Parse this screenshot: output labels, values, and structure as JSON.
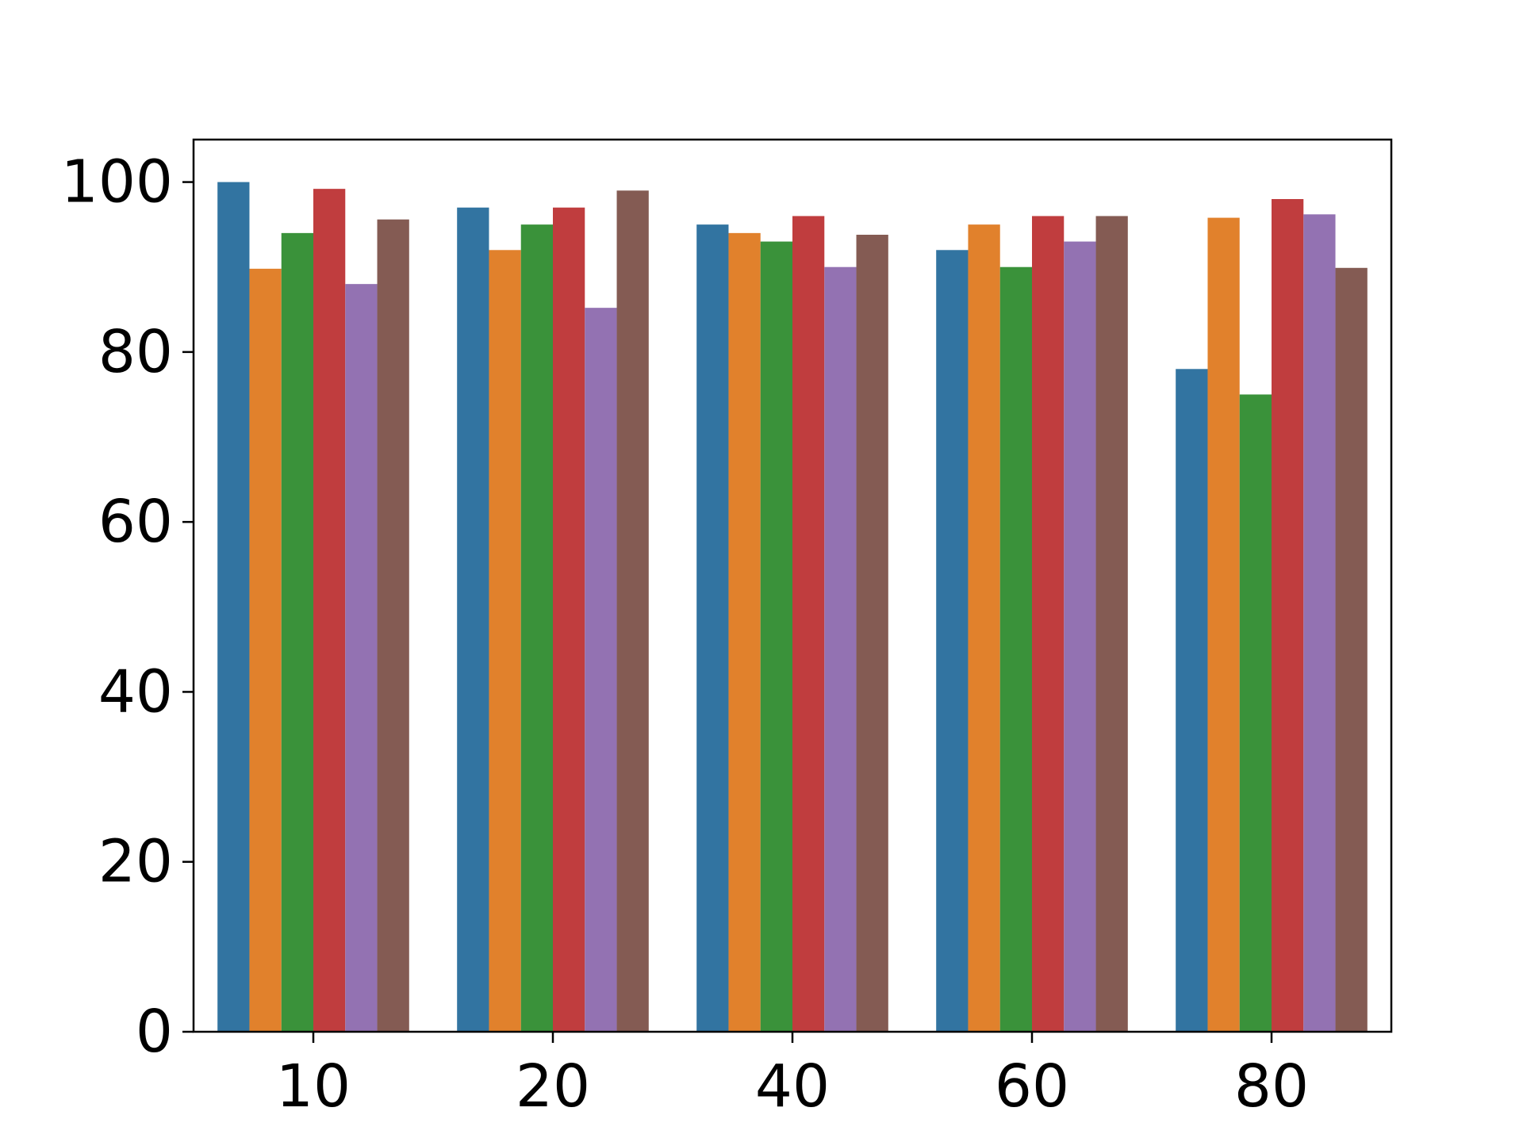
{
  "chart_data": {
    "type": "bar",
    "title": "",
    "xlabel": "",
    "ylabel": "",
    "categories": [
      "10",
      "20",
      "40",
      "60",
      "80"
    ],
    "ylim": [
      0,
      105
    ],
    "yticks": [
      0,
      20,
      40,
      60,
      80,
      100
    ],
    "grid": false,
    "legend": "none",
    "series": [
      {
        "color": "#3274a1",
        "values": [
          100,
          97,
          95,
          92,
          78
        ]
      },
      {
        "color": "#e1812c",
        "values": [
          89.8,
          92,
          94,
          95,
          95.8
        ]
      },
      {
        "color": "#3a923a",
        "values": [
          94,
          95,
          93,
          90,
          75
        ]
      },
      {
        "color": "#c03d3e",
        "values": [
          99.2,
          97,
          96,
          96,
          98
        ]
      },
      {
        "color": "#9372b2",
        "values": [
          88,
          85.2,
          90,
          93,
          96.2
        ]
      },
      {
        "color": "#845b53",
        "values": [
          95.6,
          99,
          93.8,
          96,
          89.9
        ]
      }
    ]
  }
}
